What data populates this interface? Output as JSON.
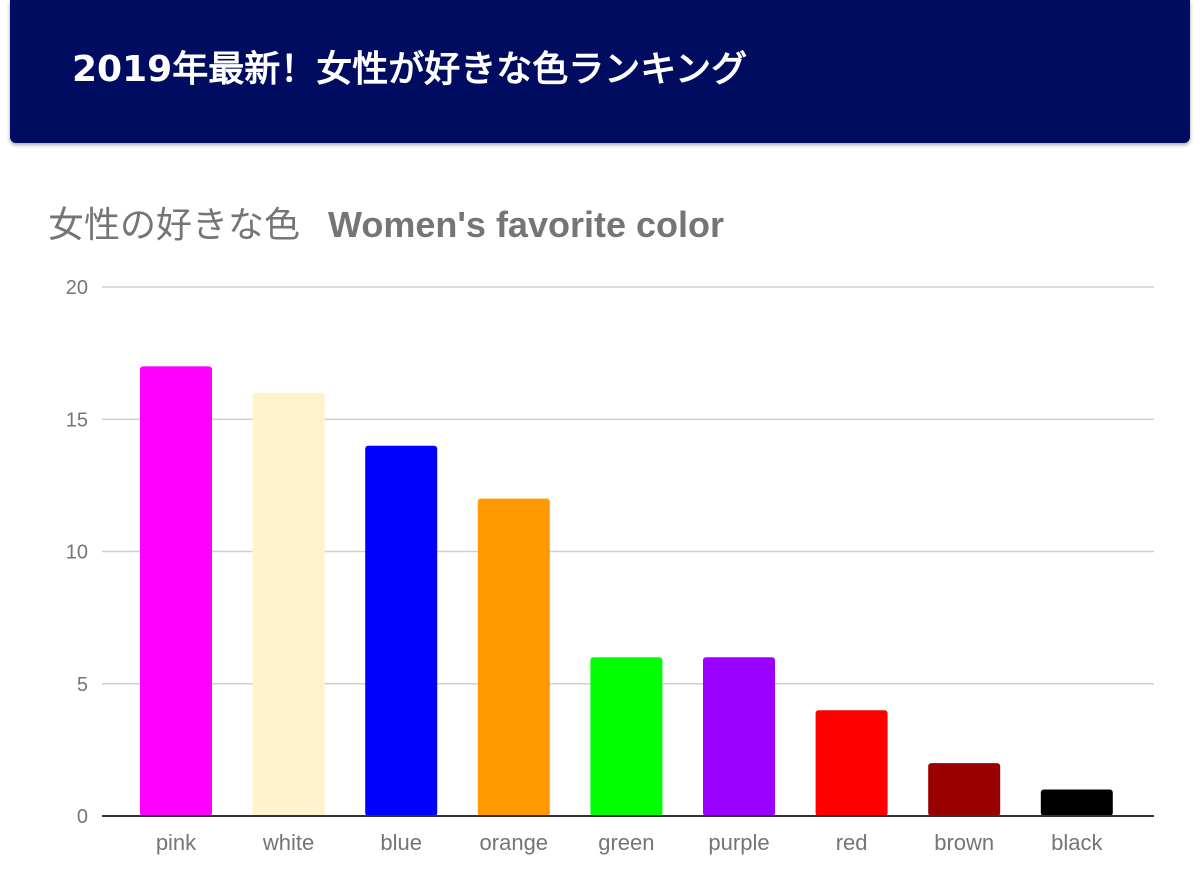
{
  "banner": {
    "title": "2019年最新！女性が好きな色ランキング",
    "background": "#000c5f"
  },
  "chart_data": {
    "type": "bar",
    "title_jp": "女性の好きな色",
    "title_en": "Women's favorite color",
    "categories": [
      "pink",
      "white",
      "blue",
      "orange",
      "green",
      "purple",
      "red",
      "brown",
      "black"
    ],
    "values": [
      17,
      16,
      14,
      12,
      6,
      6,
      4,
      2,
      1
    ],
    "colors": [
      "#ff00ff",
      "#fff2cc",
      "#0000ff",
      "#ff9900",
      "#00ff00",
      "#9900ff",
      "#ff0000",
      "#990000",
      "#000000"
    ],
    "yticks": [
      0,
      5,
      10,
      15,
      20
    ],
    "ylim": [
      0,
      20
    ],
    "xlabel": "",
    "ylabel": "",
    "grid": true,
    "legend": "none"
  }
}
